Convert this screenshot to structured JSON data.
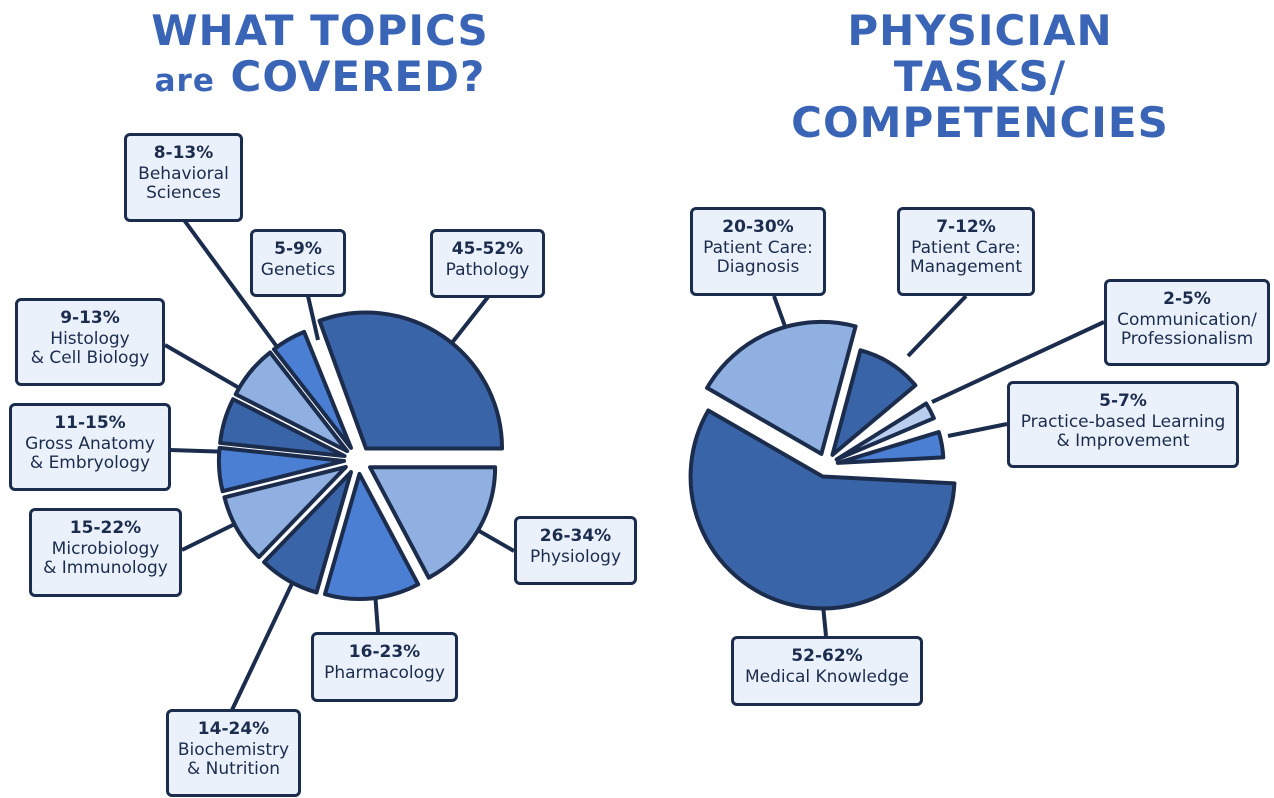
{
  "titles": {
    "left_line1": "WHAT TOPICS",
    "left_line2_small": "are",
    "left_line2_rest": "COVERED?",
    "right_line1": "PHYSICIAN TASKS/",
    "right_line2": "COMPETENCIES"
  },
  "colors": {
    "dark": "#3a64a8",
    "medium": "#4a7fd4",
    "light": "#8fb0e0",
    "pale": "#b9cdef",
    "outline": "#1b2c4d",
    "title": "#3a65b7",
    "label_bg": "#eaf1fa"
  },
  "chart_data": [
    {
      "type": "pie",
      "title": "WHAT TOPICS are COVERED?",
      "slices": [
        {
          "label": "Pathology",
          "range": "45-52%",
          "start_deg": -20,
          "end_deg": 90,
          "radius": 1.0,
          "color": "dark"
        },
        {
          "label": "Physiology",
          "range": "26-34%",
          "start_deg": 90,
          "end_deg": 152,
          "radius": 0.92,
          "color": "light"
        },
        {
          "label": "Pharmacology",
          "range": "16-23%",
          "start_deg": 152,
          "end_deg": 196,
          "radius": 0.92,
          "color": "medium"
        },
        {
          "label": "Biochemistry\n& Nutrition",
          "range": "14-24%",
          "start_deg": 196,
          "end_deg": 224,
          "radius": 0.92,
          "color": "dark"
        },
        {
          "label": "Microbiology\n& Immunology",
          "range": "15-22%",
          "start_deg": 224,
          "end_deg": 256,
          "radius": 0.92,
          "color": "light"
        },
        {
          "label": "Gross Anatomy\n& Embryology",
          "range": "11-15%",
          "start_deg": 256,
          "end_deg": 276,
          "radius": 0.92,
          "color": "medium"
        },
        {
          "label": "Histology\n& Cell Biology",
          "range": "9-13%",
          "start_deg": 276,
          "end_deg": 297,
          "radius": 0.92,
          "color": "dark"
        },
        {
          "label": "Behavioral\nSciences",
          "range": "8-13%",
          "start_deg": 297,
          "end_deg": 322,
          "radius": 0.92,
          "color": "light"
        },
        {
          "label": "Genetics",
          "range": "5-9%",
          "start_deg": 322,
          "end_deg": 338,
          "radius": 0.92,
          "color": "medium"
        }
      ]
    },
    {
      "type": "pie",
      "title": "PHYSICIAN TASKS/ COMPETENCIES",
      "slices": [
        {
          "label": "Medical Knowledge",
          "range": "52-62%",
          "start_deg": 93,
          "end_deg": 300,
          "radius": 1.0,
          "color": "dark"
        },
        {
          "label": "Patient Care:\nDiagnosis",
          "range": "20-30%",
          "start_deg": 300,
          "end_deg": 15,
          "radius": 1.0,
          "color": "light"
        },
        {
          "label": "Patient Care:\nManagement",
          "range": "7-12%",
          "start_deg": 15,
          "end_deg": 50,
          "radius": 0.82,
          "color": "dark"
        },
        {
          "label": "Communication/\nProfessionalism",
          "range": "2-5%",
          "start_deg": 58,
          "end_deg": 67,
          "radius": 0.8,
          "color": "pale"
        },
        {
          "label": "Practice-based Learning\n& Improvement",
          "range": "5-7%",
          "start_deg": 73,
          "end_deg": 87,
          "radius": 0.8,
          "color": "medium"
        }
      ]
    }
  ]
}
